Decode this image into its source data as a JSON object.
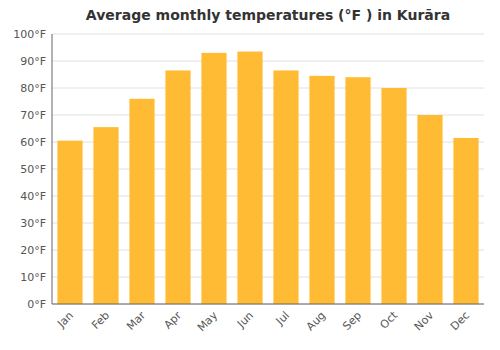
{
  "chart_data": {
    "type": "bar",
    "title": "Average monthly temperatures (°F ) in Kurāra",
    "categories": [
      "Jan",
      "Feb",
      "Mar",
      "Apr",
      "May",
      "Jun",
      "Jul",
      "Aug",
      "Sep",
      "Oct",
      "Nov",
      "Dec"
    ],
    "values": [
      60.5,
      65.5,
      76,
      86.5,
      93,
      93.5,
      86.5,
      84.5,
      84,
      80,
      70,
      61.5
    ],
    "color": "#FFBB33",
    "ylim": [
      0,
      100
    ],
    "yticks": [
      {
        "value": 0,
        "label": "0°F"
      },
      {
        "value": 10,
        "label": "10°F"
      },
      {
        "value": 20,
        "label": "20°F"
      },
      {
        "value": 30,
        "label": "30°F"
      },
      {
        "value": 40,
        "label": "40°F"
      },
      {
        "value": 50,
        "label": "50°F"
      },
      {
        "value": 60,
        "label": "60°F"
      },
      {
        "value": 70,
        "label": "70°F"
      },
      {
        "value": 80,
        "label": "80°F"
      },
      {
        "value": 90,
        "label": "90°F"
      },
      {
        "value": 100,
        "label": "100°F"
      }
    ],
    "grid": true
  }
}
